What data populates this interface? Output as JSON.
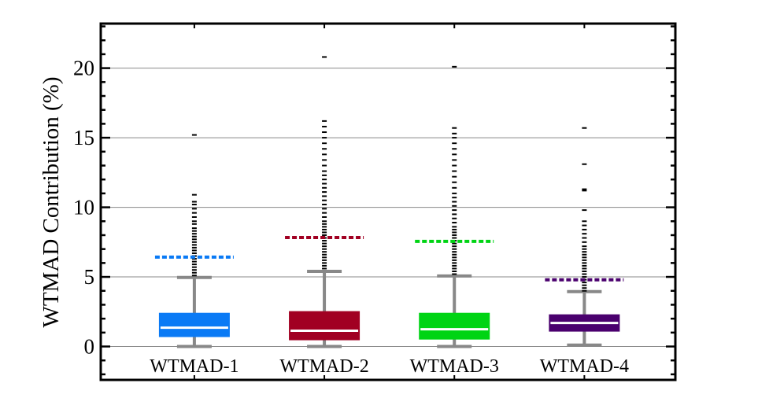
{
  "chart_data": {
    "type": "box",
    "title": "",
    "xlabel": "",
    "ylabel": "WTMAD Contribution (%)",
    "ylim": [
      -2.4,
      23.2
    ],
    "yticks": [
      0,
      5,
      10,
      15,
      20
    ],
    "grid": "horizontal",
    "categories": [
      "WTMAD-1",
      "WTMAD-2",
      "WTMAD-3",
      "WTMAD-4"
    ],
    "series": [
      {
        "category": "WTMAD-1",
        "color": "#0a7af5",
        "whisker_low": 0.0,
        "q1": 0.68,
        "median": 1.35,
        "q3": 2.42,
        "whisker_high": 4.96,
        "mean": 6.42,
        "outliers": [
          5.1,
          5.3,
          5.5,
          5.7,
          5.9,
          6.1,
          6.3,
          6.5,
          6.7,
          6.9,
          7.1,
          7.3,
          7.5,
          7.7,
          7.9,
          8.1,
          8.3,
          8.5,
          8.8,
          9.0,
          9.3,
          9.6,
          9.9,
          10.2,
          10.4,
          10.9,
          15.2
        ]
      },
      {
        "category": "WTMAD-2",
        "color": "#a10022",
        "whisker_low": 0.0,
        "q1": 0.45,
        "median": 1.13,
        "q3": 2.54,
        "whisker_high": 5.4,
        "mean": 7.83,
        "outliers": [
          5.6,
          5.8,
          6.0,
          6.2,
          6.4,
          6.6,
          6.8,
          7.0,
          7.2,
          7.4,
          7.6,
          7.8,
          8.0,
          8.2,
          8.4,
          8.6,
          8.8,
          9.0,
          9.3,
          9.6,
          9.9,
          10.2,
          10.5,
          10.8,
          11.1,
          11.4,
          11.7,
          12.0,
          12.3,
          12.6,
          13.0,
          13.4,
          13.8,
          14.2,
          14.6,
          15.0,
          15.4,
          15.8,
          16.2,
          20.8
        ]
      },
      {
        "category": "WTMAD-3",
        "color": "#00d414",
        "whisker_low": 0.0,
        "q1": 0.5,
        "median": 1.24,
        "q3": 2.42,
        "whisker_high": 5.07,
        "mean": 7.55,
        "outliers": [
          5.2,
          5.4,
          5.6,
          5.8,
          6.0,
          6.2,
          6.4,
          6.6,
          6.8,
          7.0,
          7.2,
          7.4,
          7.6,
          7.8,
          8.0,
          8.2,
          8.4,
          8.6,
          8.9,
          9.2,
          9.5,
          9.8,
          10.1,
          10.4,
          10.7,
          11.0,
          11.4,
          11.8,
          12.2,
          12.6,
          13.0,
          13.4,
          13.8,
          14.2,
          14.6,
          15.0,
          15.3,
          15.7,
          20.1
        ]
      },
      {
        "category": "WTMAD-4",
        "color": "#4a006e",
        "whisker_low": 0.1,
        "q1": 1.07,
        "median": 1.69,
        "q3": 2.31,
        "whisker_high": 3.94,
        "mean": 4.79,
        "outliers": [
          4.0,
          4.2,
          4.4,
          4.6,
          4.8,
          5.0,
          5.2,
          5.4,
          5.6,
          5.8,
          6.0,
          6.2,
          6.4,
          6.6,
          6.8,
          7.0,
          7.2,
          7.5,
          7.8,
          8.1,
          8.4,
          8.7,
          9.0,
          9.8,
          11.2,
          11.3,
          13.1,
          15.7
        ]
      }
    ]
  }
}
